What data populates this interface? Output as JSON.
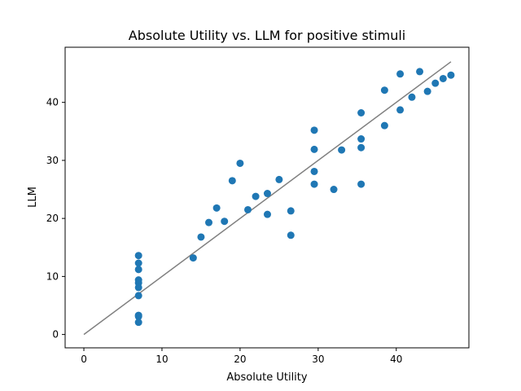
{
  "chart_data": {
    "type": "scatter",
    "title": "Absolute Utility vs. LLM for positive stimuli",
    "xlabel": "Absolute Utility",
    "ylabel": "LLM",
    "xlim": [
      -2.4,
      49.3
    ],
    "ylim": [
      -2.3,
      49.5
    ],
    "xticks": [
      0,
      10,
      20,
      30,
      40
    ],
    "yticks": [
      0,
      10,
      20,
      30,
      40
    ],
    "grid": false,
    "point_color": "#1f77b4",
    "line_color": "#808080",
    "reference_line": {
      "x": [
        0,
        47
      ],
      "y": [
        0,
        47
      ]
    },
    "points": [
      {
        "x": 7,
        "y": 13.6
      },
      {
        "x": 7,
        "y": 12.3
      },
      {
        "x": 7,
        "y": 11.2
      },
      {
        "x": 7,
        "y": 9.4
      },
      {
        "x": 7,
        "y": 8.9
      },
      {
        "x": 7,
        "y": 8.1
      },
      {
        "x": 7,
        "y": 6.7
      },
      {
        "x": 7,
        "y": 3.3
      },
      {
        "x": 7,
        "y": 3.1
      },
      {
        "x": 7,
        "y": 2.1
      },
      {
        "x": 14,
        "y": 13.2
      },
      {
        "x": 15,
        "y": 16.8
      },
      {
        "x": 16,
        "y": 19.3
      },
      {
        "x": 17,
        "y": 21.8
      },
      {
        "x": 18,
        "y": 19.5
      },
      {
        "x": 19,
        "y": 26.5
      },
      {
        "x": 20,
        "y": 29.5
      },
      {
        "x": 21,
        "y": 21.5
      },
      {
        "x": 22,
        "y": 23.8
      },
      {
        "x": 23.5,
        "y": 24.3
      },
      {
        "x": 23.5,
        "y": 20.7
      },
      {
        "x": 25,
        "y": 26.7
      },
      {
        "x": 26.5,
        "y": 21.3
      },
      {
        "x": 26.5,
        "y": 17.1
      },
      {
        "x": 29.5,
        "y": 35.2
      },
      {
        "x": 29.5,
        "y": 31.9
      },
      {
        "x": 29.5,
        "y": 28.1
      },
      {
        "x": 29.5,
        "y": 25.9
      },
      {
        "x": 32,
        "y": 25.0
      },
      {
        "x": 33,
        "y": 31.8
      },
      {
        "x": 35.5,
        "y": 38.2
      },
      {
        "x": 35.5,
        "y": 33.7
      },
      {
        "x": 35.5,
        "y": 32.2
      },
      {
        "x": 35.5,
        "y": 25.9
      },
      {
        "x": 38.5,
        "y": 42.1
      },
      {
        "x": 38.5,
        "y": 36.0
      },
      {
        "x": 40.5,
        "y": 44.9
      },
      {
        "x": 40.5,
        "y": 38.7
      },
      {
        "x": 42,
        "y": 40.9
      },
      {
        "x": 43,
        "y": 45.3
      },
      {
        "x": 44,
        "y": 41.9
      },
      {
        "x": 45,
        "y": 43.3
      },
      {
        "x": 46,
        "y": 44.1
      },
      {
        "x": 47,
        "y": 44.7
      }
    ]
  }
}
